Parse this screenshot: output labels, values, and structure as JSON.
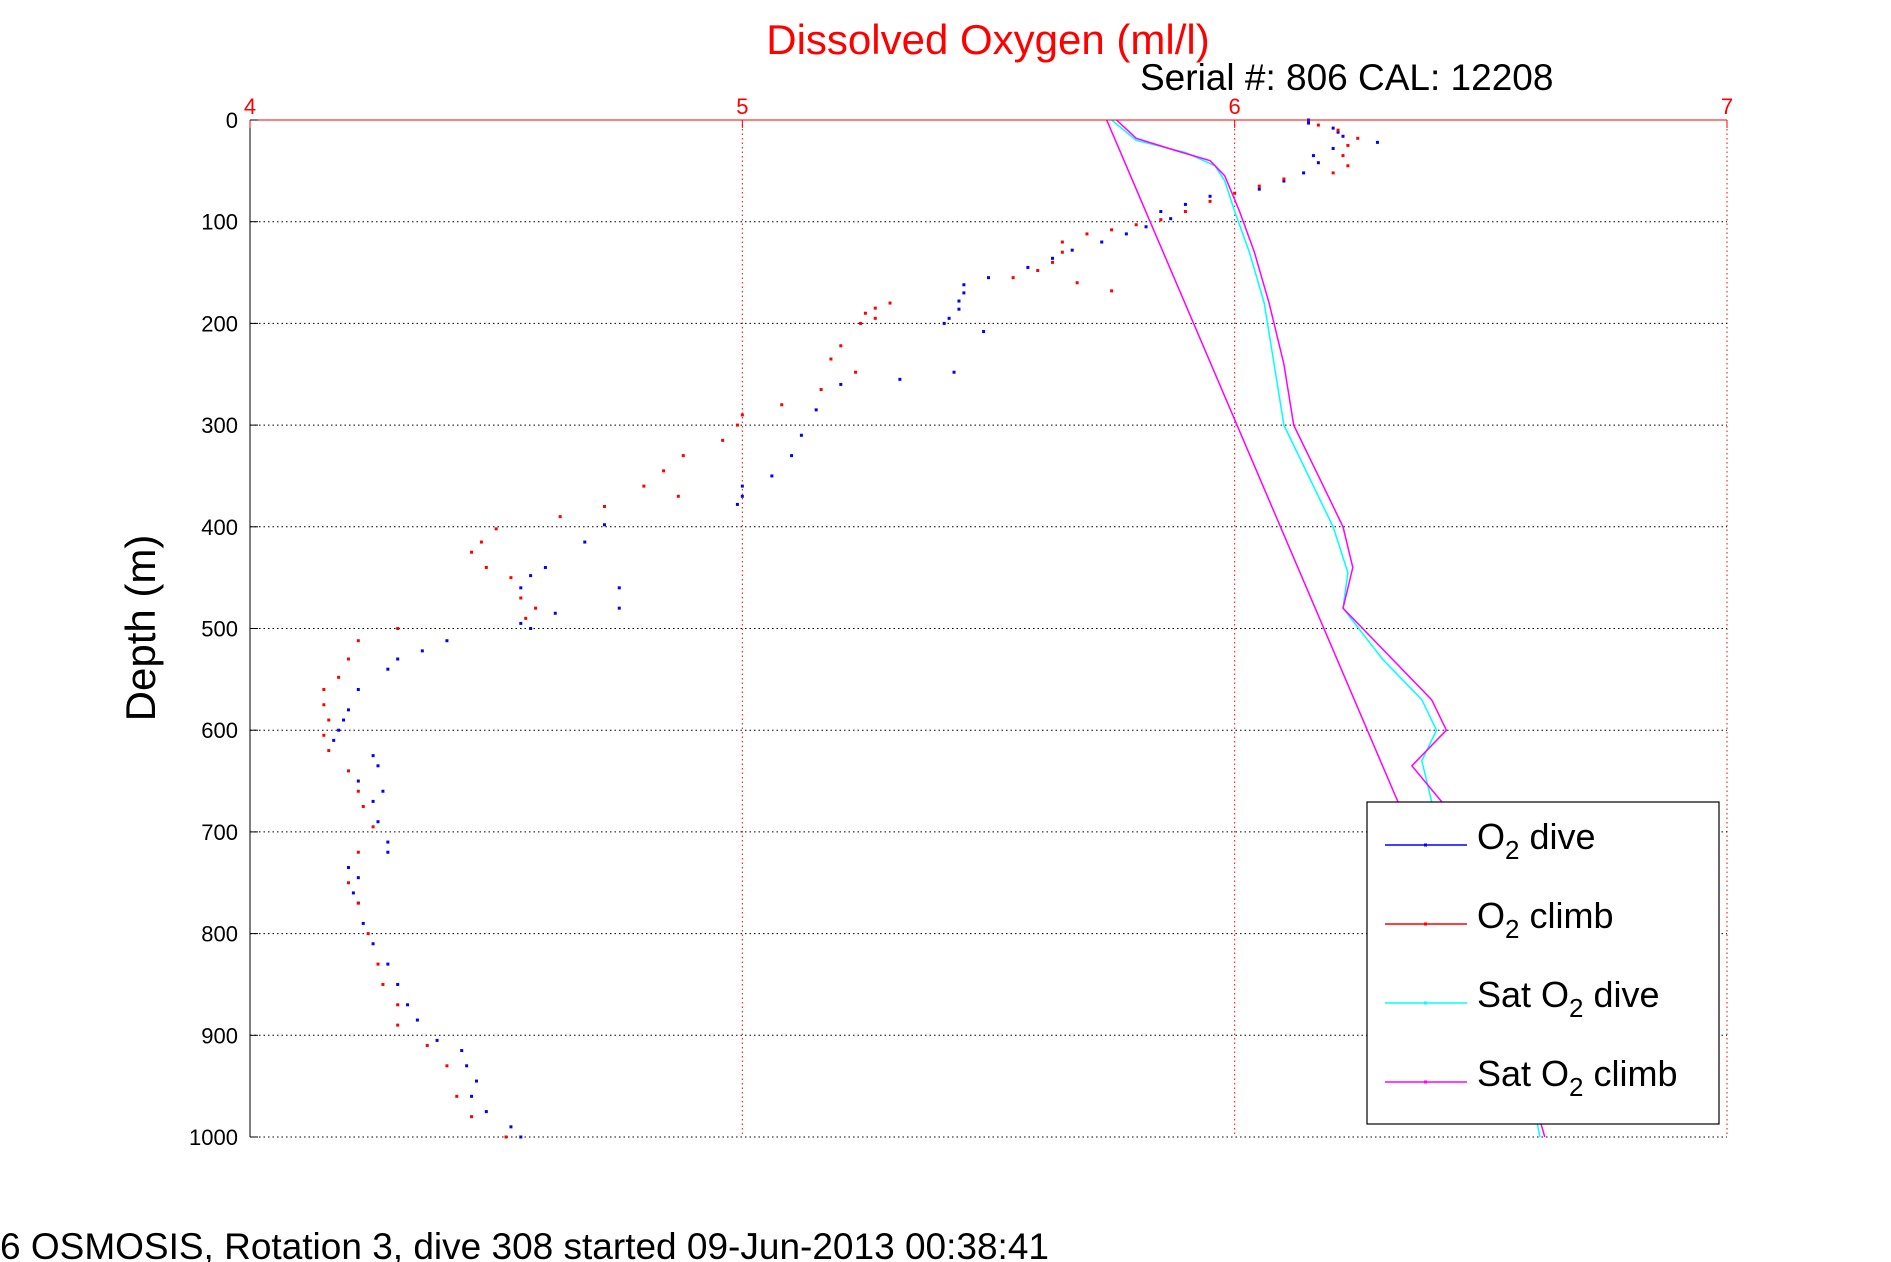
{
  "chart_data": {
    "type": "scatter",
    "title": "Dissolved Oxygen (ml/l)",
    "subtitle": "Serial #: 806  CAL: 12208",
    "ylabel": "Depth (m)",
    "xlabel": "",
    "footer": "6 OSMOSIS, Rotation 3, dive 308 started 09-Jun-2013 00:38:41",
    "xlim": [
      4,
      7
    ],
    "ylim": [
      1000,
      0
    ],
    "xticks": [
      "4",
      "5",
      "6",
      "7"
    ],
    "yticks": [
      "0",
      "100",
      "200",
      "300",
      "400",
      "500",
      "600",
      "700",
      "800",
      "900",
      "1000"
    ],
    "grid": true,
    "legend_position": "bottom-right",
    "colors": {
      "title": "#ff0000",
      "x_axis": "#ff0000",
      "o2_dive": "#0000ff",
      "o2_climb": "#ff0000",
      "sat_dive": "#00ffff",
      "sat_climb": "#ff00ff"
    },
    "series": [
      {
        "name": "O2 dive",
        "legend_main": "O",
        "legend_sub": "2",
        "legend_rest": " dive",
        "style": "points",
        "color": "#0000ff",
        "points": [
          [
            6.15,
            0
          ],
          [
            6.15,
            3
          ],
          [
            6.2,
            8
          ],
          [
            6.21,
            12
          ],
          [
            6.22,
            16
          ],
          [
            6.29,
            22
          ],
          [
            6.2,
            28
          ],
          [
            6.16,
            35
          ],
          [
            6.17,
            42
          ],
          [
            6.14,
            52
          ],
          [
            6.1,
            60
          ],
          [
            6.05,
            68
          ],
          [
            5.95,
            75
          ],
          [
            5.9,
            83
          ],
          [
            5.85,
            90
          ],
          [
            5.87,
            97
          ],
          [
            5.82,
            105
          ],
          [
            5.78,
            112
          ],
          [
            5.73,
            120
          ],
          [
            5.67,
            128
          ],
          [
            5.63,
            136
          ],
          [
            5.58,
            145
          ],
          [
            5.5,
            155
          ],
          [
            5.45,
            162
          ],
          [
            5.45,
            170
          ],
          [
            5.44,
            178
          ],
          [
            5.44,
            186
          ],
          [
            5.42,
            195
          ],
          [
            5.41,
            200
          ],
          [
            5.49,
            208
          ],
          [
            5.43,
            248
          ],
          [
            5.32,
            255
          ],
          [
            5.2,
            260
          ],
          [
            5.15,
            285
          ],
          [
            5.12,
            310
          ],
          [
            5.1,
            330
          ],
          [
            5.06,
            350
          ],
          [
            5.0,
            360
          ],
          [
            5.0,
            370
          ],
          [
            4.99,
            378
          ],
          [
            4.72,
            398
          ],
          [
            4.68,
            415
          ],
          [
            4.6,
            440
          ],
          [
            4.57,
            448
          ],
          [
            4.55,
            460
          ],
          [
            4.75,
            460
          ],
          [
            4.75,
            480
          ],
          [
            4.62,
            485
          ],
          [
            4.55,
            495
          ],
          [
            4.57,
            500
          ],
          [
            4.4,
            512
          ],
          [
            4.35,
            522
          ],
          [
            4.3,
            530
          ],
          [
            4.28,
            540
          ],
          [
            4.22,
            560
          ],
          [
            4.2,
            580
          ],
          [
            4.19,
            590
          ],
          [
            4.18,
            600
          ],
          [
            4.17,
            610
          ],
          [
            4.25,
            625
          ],
          [
            4.26,
            635
          ],
          [
            4.22,
            650
          ],
          [
            4.27,
            660
          ],
          [
            4.25,
            670
          ],
          [
            4.26,
            690
          ],
          [
            4.28,
            710
          ],
          [
            4.28,
            720
          ],
          [
            4.2,
            735
          ],
          [
            4.22,
            745
          ],
          [
            4.21,
            760
          ],
          [
            4.22,
            770
          ],
          [
            4.23,
            790
          ],
          [
            4.25,
            810
          ],
          [
            4.28,
            830
          ],
          [
            4.3,
            850
          ],
          [
            4.32,
            870
          ],
          [
            4.34,
            885
          ],
          [
            4.38,
            905
          ],
          [
            4.43,
            915
          ],
          [
            4.44,
            930
          ],
          [
            4.46,
            945
          ],
          [
            4.45,
            960
          ],
          [
            4.48,
            975
          ],
          [
            4.53,
            990
          ],
          [
            4.55,
            1000
          ]
        ]
      },
      {
        "name": "O2 climb",
        "legend_main": "O",
        "legend_sub": "2",
        "legend_rest": " climb",
        "style": "points",
        "color": "#ff0000",
        "points": [
          [
            6.17,
            5
          ],
          [
            6.21,
            10
          ],
          [
            6.25,
            18
          ],
          [
            6.23,
            25
          ],
          [
            6.22,
            35
          ],
          [
            6.23,
            45
          ],
          [
            6.2,
            52
          ],
          [
            6.1,
            58
          ],
          [
            6.05,
            65
          ],
          [
            6.0,
            72
          ],
          [
            5.95,
            80
          ],
          [
            5.9,
            90
          ],
          [
            5.85,
            98
          ],
          [
            5.8,
            103
          ],
          [
            5.75,
            108
          ],
          [
            5.7,
            112
          ],
          [
            5.65,
            120
          ],
          [
            5.65,
            130
          ],
          [
            5.63,
            140
          ],
          [
            5.6,
            148
          ],
          [
            5.55,
            155
          ],
          [
            5.68,
            160
          ],
          [
            5.75,
            168
          ],
          [
            5.3,
            180
          ],
          [
            5.27,
            185
          ],
          [
            5.25,
            190
          ],
          [
            5.27,
            195
          ],
          [
            5.24,
            200
          ],
          [
            5.2,
            222
          ],
          [
            5.18,
            235
          ],
          [
            5.23,
            248
          ],
          [
            5.16,
            265
          ],
          [
            5.08,
            280
          ],
          [
            5.0,
            290
          ],
          [
            4.99,
            300
          ],
          [
            4.96,
            315
          ],
          [
            4.88,
            330
          ],
          [
            4.84,
            345
          ],
          [
            4.8,
            360
          ],
          [
            4.87,
            370
          ],
          [
            4.72,
            380
          ],
          [
            4.63,
            390
          ],
          [
            4.5,
            402
          ],
          [
            4.47,
            415
          ],
          [
            4.45,
            425
          ],
          [
            4.48,
            440
          ],
          [
            4.53,
            450
          ],
          [
            4.55,
            470
          ],
          [
            4.58,
            480
          ],
          [
            4.56,
            490
          ],
          [
            4.3,
            500
          ],
          [
            4.22,
            512
          ],
          [
            4.2,
            530
          ],
          [
            4.18,
            548
          ],
          [
            4.15,
            560
          ],
          [
            4.15,
            575
          ],
          [
            4.16,
            590
          ],
          [
            4.15,
            605
          ],
          [
            4.16,
            620
          ],
          [
            4.2,
            640
          ],
          [
            4.22,
            660
          ],
          [
            4.23,
            675
          ],
          [
            4.25,
            695
          ],
          [
            4.22,
            720
          ],
          [
            4.2,
            750
          ],
          [
            4.22,
            770
          ],
          [
            4.24,
            800
          ],
          [
            4.26,
            830
          ],
          [
            4.27,
            850
          ],
          [
            4.3,
            870
          ],
          [
            4.3,
            890
          ],
          [
            4.36,
            910
          ],
          [
            4.4,
            930
          ],
          [
            4.42,
            960
          ],
          [
            4.45,
            980
          ],
          [
            4.52,
            1000
          ]
        ]
      },
      {
        "name": "Sat O2 dive",
        "legend_main": "Sat O",
        "legend_sub": "2",
        "legend_rest": " dive",
        "style": "line",
        "color": "#00ffff",
        "points": [
          [
            5.75,
            0
          ],
          [
            5.8,
            20
          ],
          [
            5.9,
            32
          ],
          [
            5.96,
            45
          ],
          [
            5.98,
            60
          ],
          [
            6.0,
            90
          ],
          [
            6.03,
            130
          ],
          [
            6.06,
            180
          ],
          [
            6.08,
            240
          ],
          [
            6.1,
            300
          ],
          [
            6.15,
            350
          ],
          [
            6.2,
            400
          ],
          [
            6.23,
            445
          ],
          [
            6.22,
            480
          ],
          [
            6.3,
            530
          ],
          [
            6.38,
            570
          ],
          [
            6.41,
            600
          ],
          [
            6.38,
            630
          ],
          [
            6.4,
            670
          ],
          [
            6.48,
            780
          ],
          [
            6.5,
            850
          ],
          [
            6.6,
            950
          ],
          [
            6.62,
            1000
          ]
        ]
      },
      {
        "name": "Sat O2 climb",
        "legend_main": "Sat O",
        "legend_sub": "2",
        "legend_rest": " climb",
        "style": "line",
        "color": "#ff00ff",
        "points": [
          [
            5.76,
            0
          ],
          [
            5.8,
            18
          ],
          [
            5.88,
            30
          ],
          [
            5.95,
            40
          ],
          [
            5.98,
            55
          ],
          [
            6.01,
            90
          ],
          [
            6.04,
            130
          ],
          [
            6.07,
            180
          ],
          [
            6.1,
            240
          ],
          [
            6.12,
            300
          ],
          [
            6.17,
            350
          ],
          [
            6.22,
            400
          ],
          [
            6.24,
            440
          ],
          [
            6.22,
            480
          ],
          [
            6.32,
            530
          ],
          [
            6.4,
            570
          ],
          [
            6.43,
            600
          ],
          [
            6.36,
            635
          ],
          [
            6.42,
            670
          ],
          [
            6.5,
            780
          ],
          [
            6.52,
            850
          ],
          [
            6.6,
            950
          ],
          [
            6.63,
            1000
          ]
        ]
      },
      {
        "name": "",
        "style": "line",
        "color": "#ff00ff",
        "points": [
          [
            5.74,
            0
          ],
          [
            6.34,
            680
          ]
        ]
      }
    ]
  }
}
